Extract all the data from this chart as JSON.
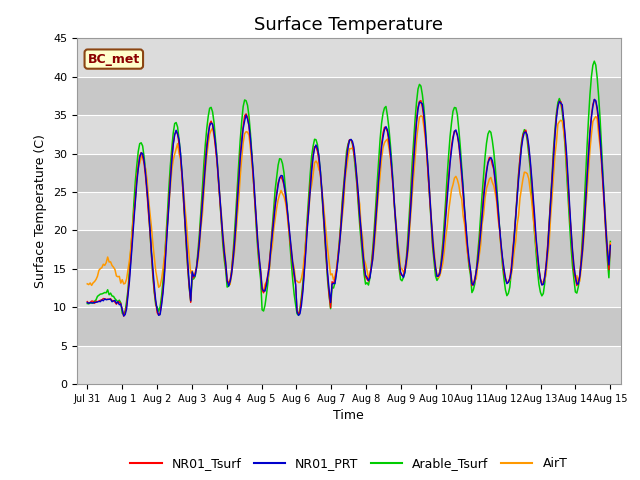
{
  "title": "Surface Temperature",
  "ylabel": "Surface Temperature (C)",
  "xlabel": "Time",
  "annotation": "BC_met",
  "ylim": [
    0,
    45
  ],
  "yticks": [
    0,
    5,
    10,
    15,
    20,
    25,
    30,
    35,
    40,
    45
  ],
  "plot_bg": "#e8e8e8",
  "band_light": "#dcdcdc",
  "band_dark": "#c8c8c8",
  "series_colors": {
    "NR01_Tsurf": "#ff0000",
    "NR01_PRT": "#0000cc",
    "Arable_Tsurf": "#00cc00",
    "AirT": "#ff9900"
  },
  "xtick_labels": [
    "Jul 31",
    "Aug 1",
    "Aug 2",
    "Aug 3",
    "Aug 4",
    "Aug 5",
    "Aug 6",
    "Aug 7",
    "Aug 8",
    "Aug 9",
    "Aug 10",
    "Aug 11",
    "Aug 12",
    "Aug 13",
    "Aug 14",
    "Aug 15"
  ],
  "title_fontsize": 13,
  "label_fontsize": 9,
  "tick_fontsize": 8,
  "legend_fontsize": 9,
  "nr_mins": [
    10.5,
    9.0,
    9.0,
    14.0,
    13.0,
    12.0,
    9.0,
    13.0,
    13.5,
    14.0,
    14.0,
    13.0,
    13.0,
    13.0,
    13.0,
    18.0
  ],
  "nr_maxs": [
    11.0,
    30.0,
    33.0,
    34.0,
    35.0,
    27.0,
    31.0,
    32.0,
    33.5,
    37.0,
    33.0,
    29.5,
    33.0,
    37.0,
    37.0,
    20.0
  ],
  "arable_mins": [
    10.5,
    9.0,
    9.5,
    13.5,
    12.5,
    9.5,
    9.0,
    12.5,
    13.0,
    13.5,
    13.5,
    12.0,
    11.5,
    11.5,
    12.0,
    18.5
  ],
  "arable_maxs": [
    12.0,
    31.5,
    34.0,
    36.0,
    37.0,
    29.5,
    32.0,
    32.0,
    36.0,
    39.0,
    36.0,
    33.0,
    33.0,
    37.0,
    42.0,
    20.0
  ],
  "airt_mins": [
    13.0,
    13.0,
    13.0,
    14.0,
    13.0,
    12.5,
    13.0,
    14.0,
    14.0,
    14.5,
    14.0,
    13.0,
    13.0,
    13.0,
    13.5,
    18.0
  ],
  "airt_maxs": [
    16.0,
    29.5,
    31.0,
    33.0,
    33.0,
    25.0,
    29.0,
    31.0,
    32.0,
    35.0,
    27.0,
    27.0,
    27.5,
    34.5,
    35.0,
    20.0
  ]
}
